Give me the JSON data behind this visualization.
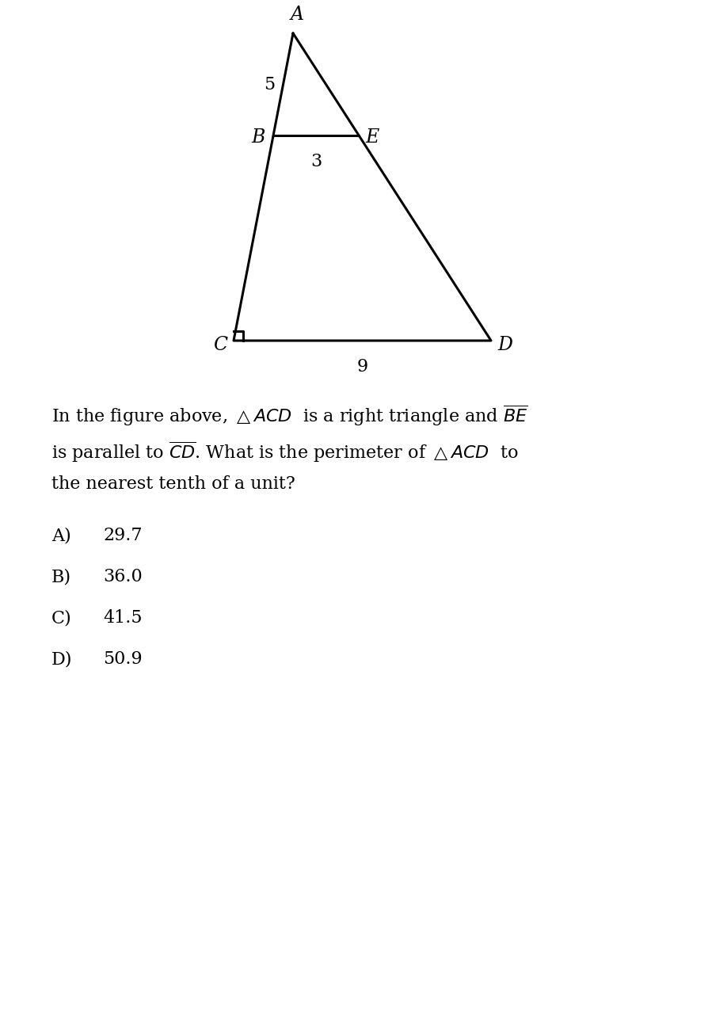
{
  "bg_color": "#ffffff",
  "fig_width": 8.99,
  "fig_height": 12.8,
  "label_A": "A",
  "label_B": "B",
  "label_C": "C",
  "label_D": "D",
  "label_E": "E",
  "label_5": "5",
  "label_3": "3",
  "label_9": "9",
  "line_color": "#000000",
  "line_width": 2.2,
  "font_size_labels": 15,
  "font_size_question": 16,
  "font_size_choices": 16,
  "question_line1": "In the figure above, $\\triangle ACD$  is a right triangle and $\\overline{BE}$",
  "question_line2": "is parallel to $\\overline{CD}$. What is the perimeter of $\\triangle ACD$  to",
  "question_line3": "the nearest tenth of a unit?",
  "choice_labels": [
    "A)",
    "B)",
    "C)",
    "D)"
  ],
  "choice_vals": [
    "29.7",
    "36.0",
    "41.5",
    "50.9"
  ]
}
